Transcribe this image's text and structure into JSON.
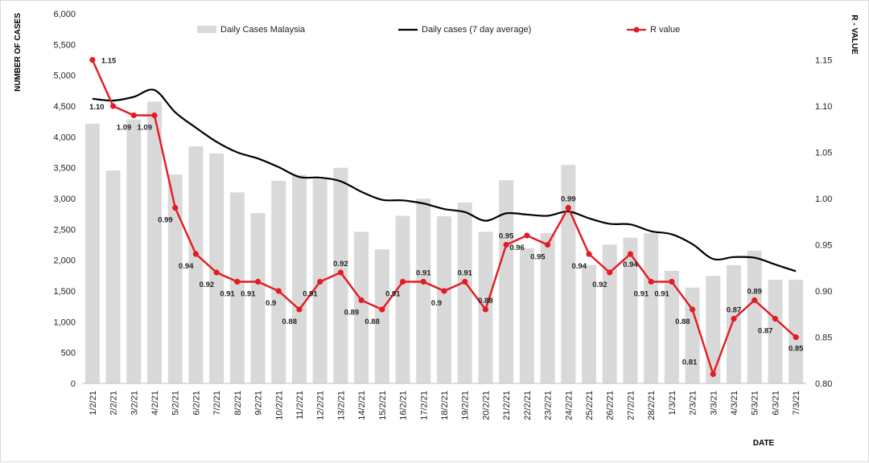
{
  "chart_data": {
    "type": "bar+line",
    "categories": [
      "1/2/21",
      "2/2/21",
      "3/2/21",
      "4/2/21",
      "5/2/21",
      "6/2/21",
      "7/2/21",
      "8/2/21",
      "9/2/21",
      "10/2/21",
      "11/2/21",
      "12/2/21",
      "13/2/21",
      "14/2/21",
      "15/2/21",
      "16/2/21",
      "17/2/21",
      "18/2/21",
      "19/2/21",
      "20/2/21",
      "21/2/21",
      "22/2/21",
      "23/2/21",
      "24/2/21",
      "25/2/21",
      "26/2/21",
      "27/2/21",
      "28/2/21",
      "1/3/21",
      "2/3/21",
      "3/3/21",
      "4/3/21",
      "5/3/21",
      "6/3/21",
      "7/3/21"
    ],
    "series": [
      {
        "name": "Daily Cases Malaysia",
        "kind": "bar",
        "axis": "left",
        "color": "#d9d9d9",
        "values": [
          4214,
          3455,
          4284,
          4571,
          3391,
          3847,
          3731,
          3100,
          2764,
          3288,
          3384,
          3318,
          3499,
          2461,
          2176,
          2720,
          2998,
          2712,
          2936,
          2461,
          3297,
          2192,
          2437,
          3545,
          1924,
          2253,
          2364,
          2437,
          1828,
          1555,
          1745,
          1919,
          2154,
          1683,
          1682
        ]
      },
      {
        "name": "Daily cases (7 day average)",
        "kind": "line",
        "axis": "left",
        "color": "#000000",
        "values": [
          4620,
          4590,
          4650,
          4760,
          4400,
          4150,
          3920,
          3750,
          3650,
          3510,
          3350,
          3340,
          3280,
          3110,
          2980,
          2970,
          2920,
          2830,
          2780,
          2640,
          2760,
          2740,
          2720,
          2790,
          2680,
          2590,
          2580,
          2470,
          2420,
          2260,
          2020,
          2050,
          2040,
          1930,
          1820
        ]
      },
      {
        "name": "R value",
        "kind": "line",
        "axis": "right",
        "color": "#e31b23",
        "values": [
          1.15,
          1.1,
          1.09,
          1.09,
          0.99,
          0.94,
          0.92,
          0.91,
          0.91,
          0.9,
          0.88,
          0.91,
          0.92,
          0.89,
          0.88,
          0.91,
          0.91,
          0.9,
          0.91,
          0.88,
          0.95,
          0.96,
          0.95,
          0.99,
          0.94,
          0.92,
          0.94,
          0.91,
          0.91,
          0.88,
          0.81,
          0.87,
          0.89,
          0.87,
          0.85
        ],
        "labels": [
          "1.15",
          "1.10",
          "1.09",
          "1.09",
          "0.99",
          "0.94",
          "0.92",
          "0.91",
          "0.91",
          "0.9",
          "0.88",
          "0.91",
          "0.92",
          "0.89",
          "0.88",
          "0.91",
          "0.91",
          "0.9",
          "0.91",
          "0.88",
          "0.95",
          "0.96",
          "0.95",
          "0.99",
          "0.94",
          "0.92",
          "0.94",
          "0.91",
          "0.91",
          "0.88",
          "0.81",
          "0.87",
          "0.89",
          "0.87",
          "0.85"
        ]
      }
    ],
    "ylabel": "NUMBER OF CASES",
    "y2label": "R - VALUE",
    "xlabel": "DATE",
    "ylim": [
      0,
      6000
    ],
    "y2lim": [
      0.8,
      1.2
    ],
    "yticks": [
      "0",
      "500",
      "1,000",
      "1,500",
      "2,000",
      "2,500",
      "3,000",
      "3,500",
      "4,000",
      "4,500",
      "5,000",
      "5,500",
      "6,000"
    ],
    "y2ticks": [
      "0.80",
      "0.85",
      "0.90",
      "0.95",
      "1.00",
      "1.05",
      "1.10",
      "1.15"
    ],
    "legend_position": "top"
  }
}
